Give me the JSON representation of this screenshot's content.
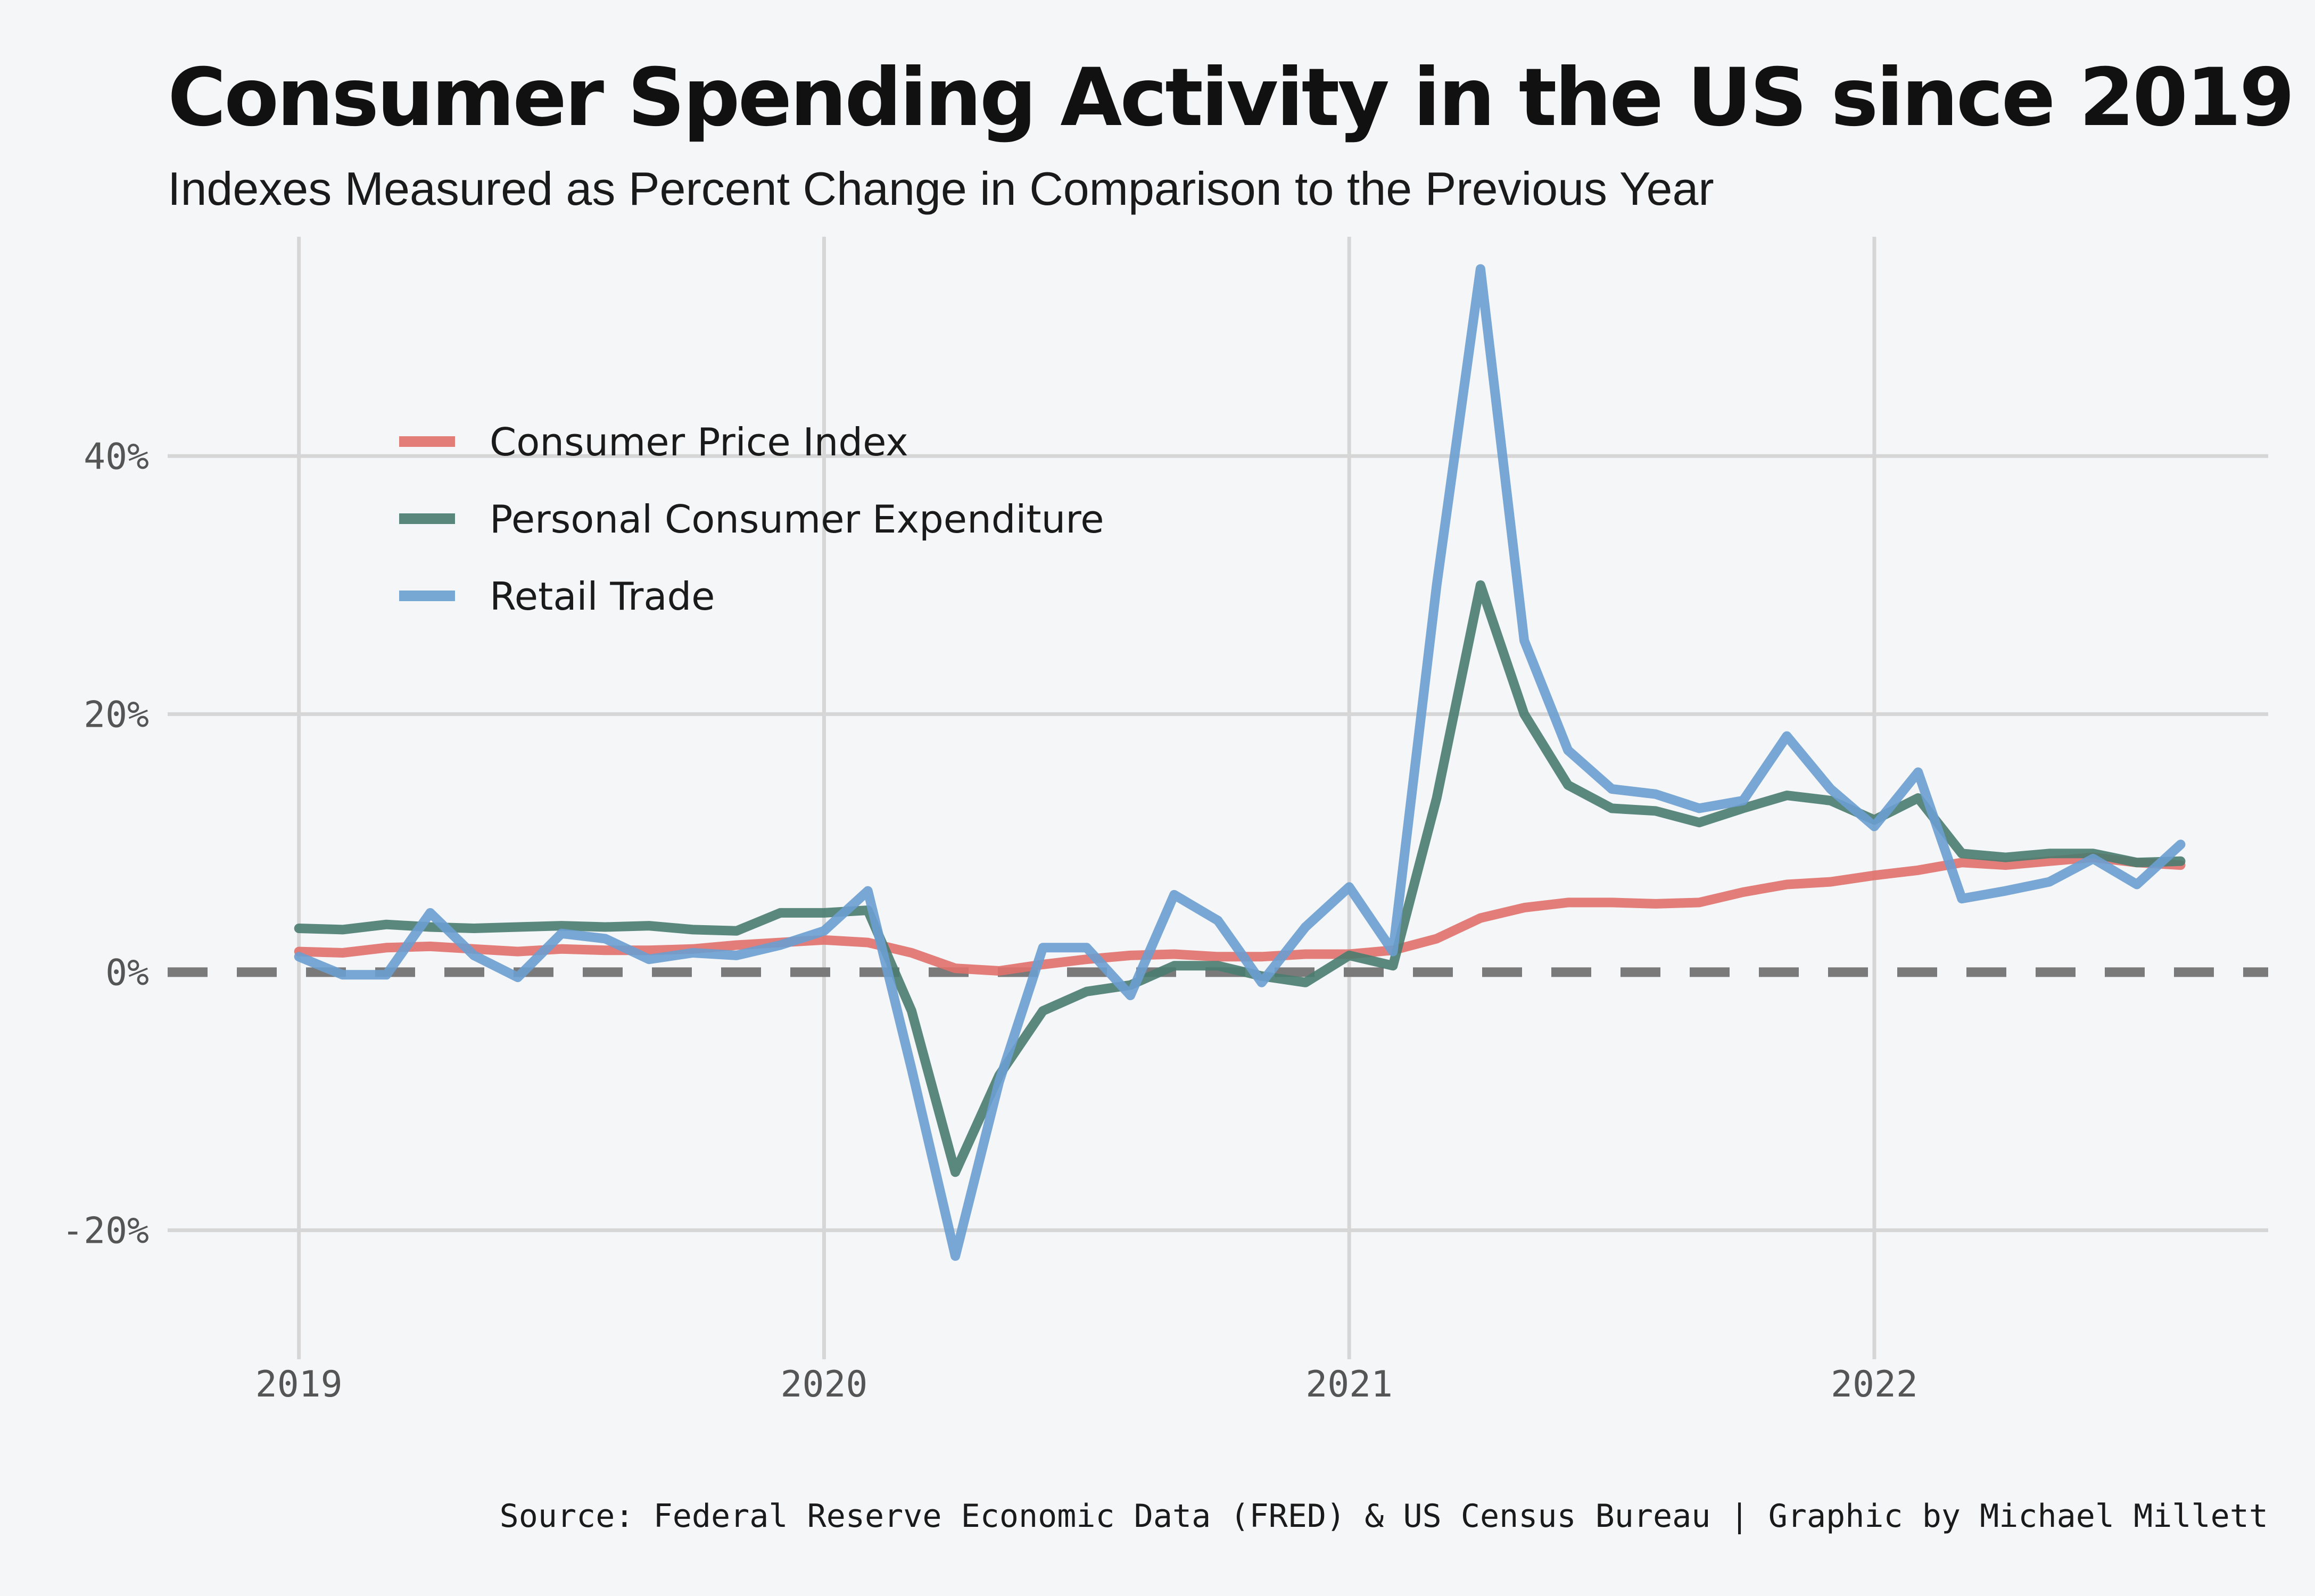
{
  "chart_data": {
    "type": "line",
    "title": "Consumer Spending Activity in the US since 2019",
    "subtitle": "Indexes Measured as Percent Change in Comparison to the Previous Year",
    "caption": "Source: Federal Reserve Economic Data (FRED) & US Census Bureau | Graphic by Michael Millett",
    "x_ticks": [
      "2019",
      "2020",
      "2021",
      "2022"
    ],
    "y_ticks": [
      "-20%",
      "0%",
      "20%",
      "40%"
    ],
    "y_tick_values": [
      -20,
      0,
      20,
      40
    ],
    "xlim": [
      "2018-10",
      "2022-10"
    ],
    "ylim": [
      -30,
      57
    ],
    "grid": true,
    "zero_line": "dashed",
    "legend_position": "top-left",
    "x": [
      "2019-01",
      "2019-02",
      "2019-03",
      "2019-04",
      "2019-05",
      "2019-06",
      "2019-07",
      "2019-08",
      "2019-09",
      "2019-10",
      "2019-11",
      "2019-12",
      "2020-01",
      "2020-02",
      "2020-03",
      "2020-04",
      "2020-05",
      "2020-06",
      "2020-07",
      "2020-08",
      "2020-09",
      "2020-10",
      "2020-11",
      "2020-12",
      "2021-01",
      "2021-02",
      "2021-03",
      "2021-04",
      "2021-05",
      "2021-06",
      "2021-07",
      "2021-08",
      "2021-09",
      "2021-10",
      "2021-11",
      "2021-12",
      "2022-01",
      "2022-02",
      "2022-03",
      "2022-04",
      "2022-05",
      "2022-06",
      "2022-07",
      "2022-08"
    ],
    "series": [
      {
        "name": "Consumer Price Index",
        "color": "#e0706a",
        "values": [
          1.6,
          1.5,
          1.9,
          2.0,
          1.8,
          1.6,
          1.8,
          1.7,
          1.7,
          1.8,
          2.1,
          2.3,
          2.5,
          2.3,
          1.5,
          0.3,
          0.1,
          0.6,
          1.0,
          1.3,
          1.4,
          1.2,
          1.2,
          1.4,
          1.4,
          1.7,
          2.6,
          4.2,
          5.0,
          5.4,
          5.4,
          5.3,
          5.4,
          6.2,
          6.8,
          7.0,
          7.5,
          7.9,
          8.5,
          8.3,
          8.6,
          8.9,
          8.5,
          8.3
        ]
      },
      {
        "name": "Personal Consumer Expenditure",
        "color": "#4a7c6f",
        "values": [
          3.4,
          3.3,
          3.7,
          3.5,
          3.4,
          3.5,
          3.6,
          3.5,
          3.6,
          3.3,
          3.2,
          4.6,
          4.6,
          4.8,
          -3.0,
          -15.5,
          -8.0,
          -3.0,
          -1.5,
          -1.0,
          0.5,
          0.5,
          -0.3,
          -0.8,
          1.3,
          0.5,
          13.5,
          30.0,
          20.0,
          14.5,
          12.7,
          12.5,
          11.6,
          12.7,
          13.7,
          13.3,
          11.8,
          13.5,
          9.2,
          8.9,
          9.2,
          9.2,
          8.5,
          8.6
        ]
      },
      {
        "name": "Retail Trade",
        "color": "#6a9fd0",
        "values": [
          1.2,
          -0.2,
          -0.2,
          4.6,
          1.3,
          -0.4,
          3.0,
          2.6,
          1.0,
          1.5,
          1.3,
          2.1,
          3.2,
          6.3,
          -7.5,
          -22.0,
          -8.5,
          1.9,
          1.9,
          -1.8,
          6.0,
          4.0,
          -0.8,
          3.5,
          6.6,
          1.6,
          30.0,
          54.5,
          25.7,
          17.2,
          14.2,
          13.8,
          12.7,
          13.3,
          18.3,
          14.2,
          11.3,
          15.5,
          5.7,
          6.3,
          7.0,
          8.8,
          6.8,
          9.9
        ]
      }
    ]
  }
}
